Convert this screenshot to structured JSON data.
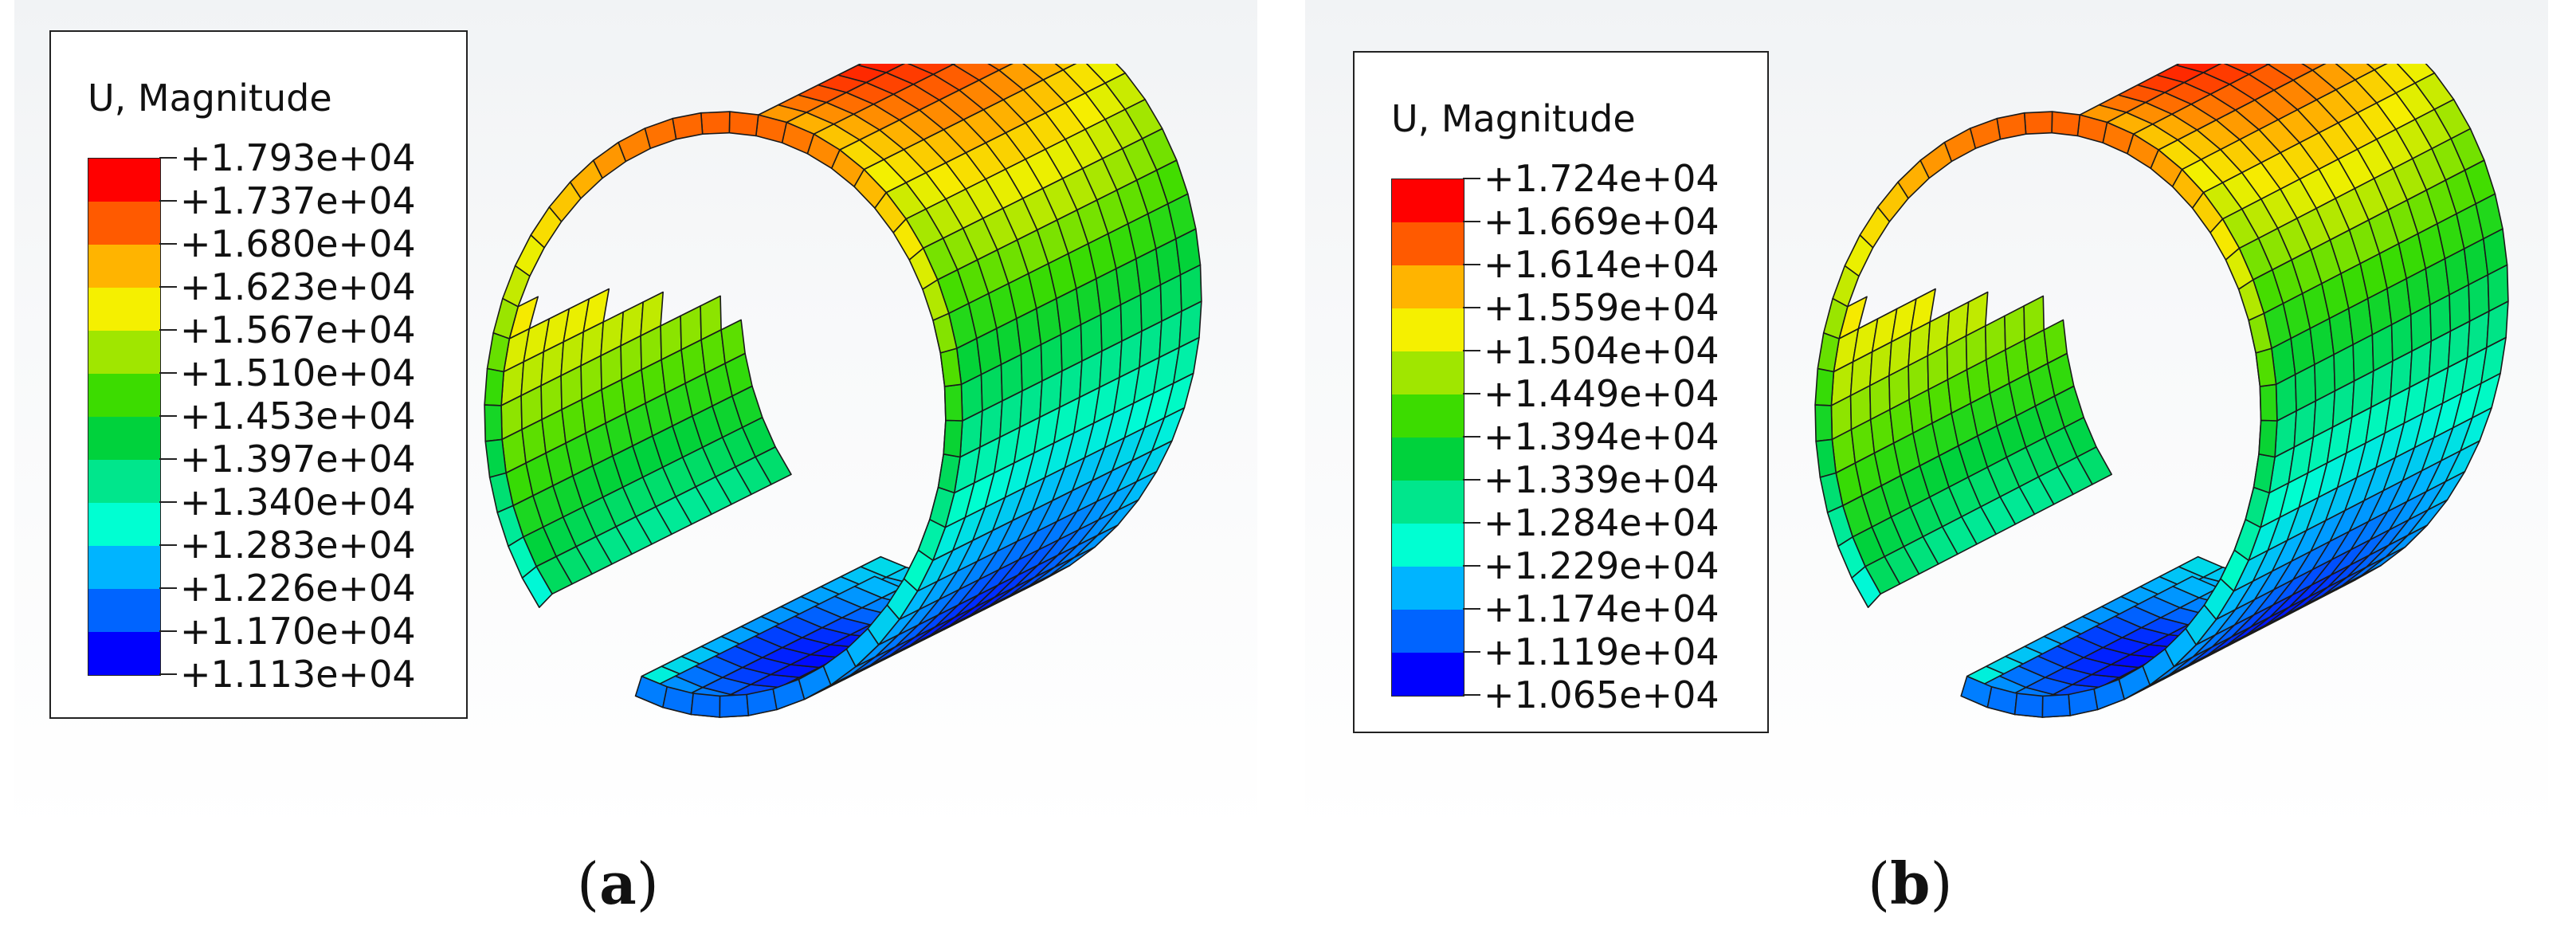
{
  "panels": [
    {
      "id": "a",
      "legend": {
        "title": "U, Magnitude",
        "values": [
          "+1.793e+04",
          "+1.737e+04",
          "+1.680e+04",
          "+1.623e+04",
          "+1.567e+04",
          "+1.510e+04",
          "+1.453e+04",
          "+1.397e+04",
          "+1.340e+04",
          "+1.283e+04",
          "+1.226e+04",
          "+1.170e+04",
          "+1.113e+04"
        ]
      },
      "caption_letter": "a"
    },
    {
      "id": "b",
      "legend": {
        "title": "U, Magnitude",
        "values": [
          "+1.724e+04",
          "+1.669e+04",
          "+1.614e+04",
          "+1.559e+04",
          "+1.504e+04",
          "+1.449e+04",
          "+1.394e+04",
          "+1.339e+04",
          "+1.284e+04",
          "+1.229e+04",
          "+1.174e+04",
          "+1.119e+04",
          "+1.065e+04"
        ]
      },
      "caption_letter": "b"
    }
  ],
  "colormap": [
    "#ff0000",
    "#ff5a00",
    "#ffb400",
    "#f5f000",
    "#a0e600",
    "#3cdc00",
    "#00d23c",
    "#00e68c",
    "#00ffd2",
    "#00b4ff",
    "#0064ff",
    "#0000ff"
  ],
  "caption_open": "(",
  "caption_close": ")"
}
